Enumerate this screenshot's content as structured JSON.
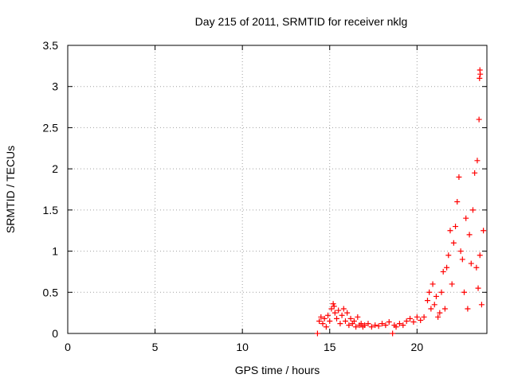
{
  "chart_data": {
    "type": "scatter",
    "title": "Day 215 of 2011, SRMTID for receiver nklg",
    "xlabel": "GPS time / hours",
    "ylabel": "SRMTID / TECUs",
    "xlim": [
      0,
      24
    ],
    "ylim": [
      0,
      3.5
    ],
    "x_ticks": [
      "0",
      "5",
      "10",
      "15",
      "20"
    ],
    "y_ticks": [
      "0",
      "0.5",
      "1",
      "1.5",
      "2",
      "2.5",
      "3",
      "3.5"
    ],
    "grid": true,
    "marker": "+",
    "color": "#ff0000",
    "series": [
      {
        "x": [
          14.3,
          14.4,
          14.5,
          14.6,
          14.7,
          14.8,
          14.9,
          15.0,
          15.1,
          15.2,
          15.25,
          15.3,
          15.4,
          15.5,
          15.6,
          15.7,
          15.8,
          15.9,
          16.0,
          16.1,
          16.2,
          16.3,
          16.4,
          16.5,
          16.6,
          16.7,
          16.8,
          16.9,
          17.0,
          17.2,
          17.4,
          17.6,
          17.8,
          18.0,
          18.2,
          18.4,
          18.6,
          18.7,
          18.8,
          19.0,
          19.2,
          19.4,
          19.6,
          19.8,
          20.0,
          20.2,
          20.4,
          20.6,
          20.7,
          20.8,
          20.9,
          21.0,
          21.1,
          21.2,
          21.3,
          21.4,
          21.5,
          21.6,
          21.7,
          21.8,
          21.9,
          22.0,
          22.1,
          22.2,
          22.3,
          22.4,
          22.5,
          22.6,
          22.7,
          22.8,
          22.9,
          23.0,
          23.1,
          23.2,
          23.3,
          23.4,
          23.45,
          23.5,
          23.55,
          23.6,
          23.7,
          23.8
        ],
        "y": [
          0.0,
          0.15,
          0.2,
          0.12,
          0.18,
          0.08,
          0.22,
          0.15,
          0.3,
          0.36,
          0.33,
          0.25,
          0.18,
          0.28,
          0.12,
          0.22,
          0.3,
          0.15,
          0.25,
          0.1,
          0.18,
          0.12,
          0.15,
          0.08,
          0.2,
          0.1,
          0.12,
          0.08,
          0.1,
          0.12,
          0.08,
          0.1,
          0.09,
          0.12,
          0.1,
          0.14,
          0.0,
          0.1,
          0.08,
          0.12,
          0.1,
          0.15,
          0.18,
          0.14,
          0.2,
          0.16,
          0.2,
          0.4,
          0.5,
          0.3,
          0.6,
          0.35,
          0.45,
          0.2,
          0.25,
          0.5,
          0.75,
          0.3,
          0.8,
          0.95,
          1.25,
          0.6,
          1.1,
          1.3,
          1.6,
          1.9,
          1.0,
          0.9,
          0.5,
          1.4,
          0.3,
          1.2,
          0.85,
          1.5,
          1.95,
          0.8,
          2.1,
          0.55,
          2.6,
          0.95,
          0.35,
          1.25
        ]
      },
      {
        "x": [
          23.6,
          23.62,
          23.58
        ],
        "y": [
          3.2,
          3.15,
          3.1
        ]
      }
    ]
  }
}
